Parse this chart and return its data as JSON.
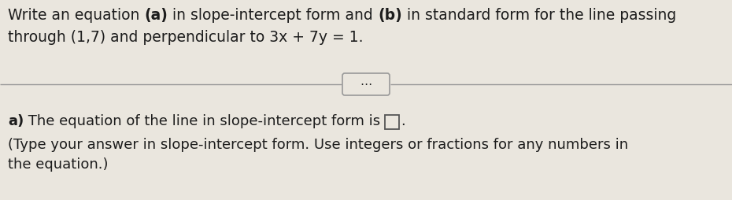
{
  "background_color": "#eae6de",
  "top_line1_segments": [
    {
      "text": "Write an equation ",
      "bold": false
    },
    {
      "text": "(a)",
      "bold": true
    },
    {
      "text": " in slope-intercept form and ",
      "bold": false
    },
    {
      "text": "(b)",
      "bold": true
    },
    {
      "text": " in standard form for the line passing",
      "bold": false
    }
  ],
  "top_line2": "through (1,7) and perpendicular to 3x + 7y = 1.",
  "bottom_line1_segments": [
    {
      "text": "a)",
      "bold": true
    },
    {
      "text": " The equation of the line in slope-intercept form is ",
      "bold": false
    }
  ],
  "bottom_line2": "(Type your answer in slope-intercept form. Use integers or fractions for any numbers in",
  "bottom_line3": "the equation.)",
  "font_size": 13.5,
  "font_size_small": 13.0,
  "text_color": "#1c1c1c",
  "line_color": "#999999",
  "box_stroke_color": "#555555",
  "divider_button_bg": "#e8e4dc"
}
